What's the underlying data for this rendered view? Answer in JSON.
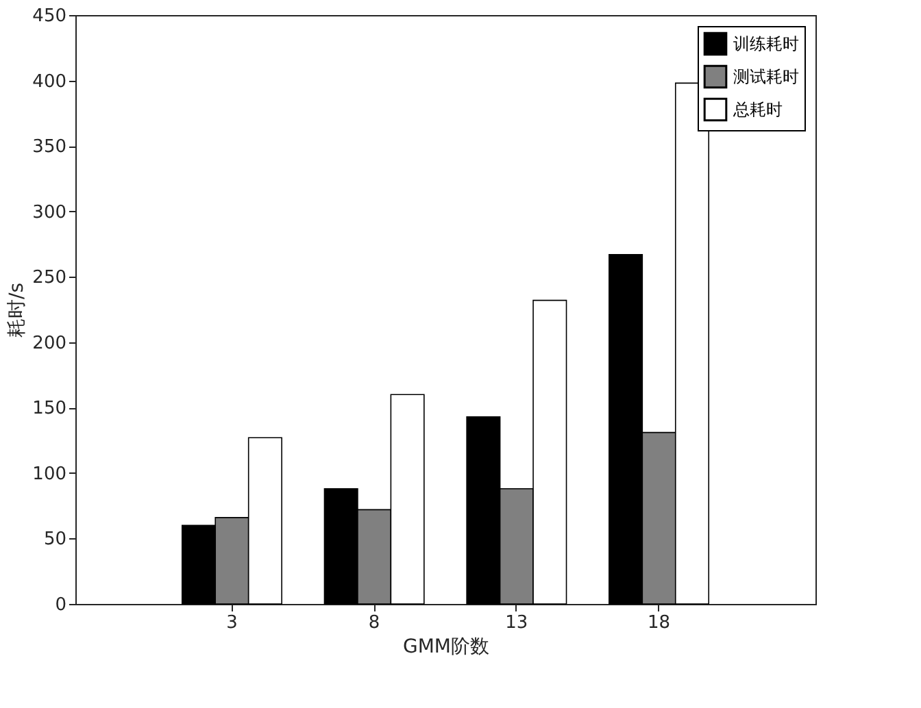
{
  "chart_data": {
    "type": "bar",
    "xlabel": "GMM阶数",
    "ylabel": "耗时/s",
    "categories": [
      "3",
      "8",
      "13",
      "18"
    ],
    "series": [
      {
        "name": "训练耗时",
        "color": "#000000",
        "values": [
          60,
          88,
          143,
          267
        ]
      },
      {
        "name": "测试耗时",
        "color": "#808080",
        "values": [
          66,
          72,
          88,
          131
        ]
      },
      {
        "name": "总耗时",
        "color": "#ffffff",
        "values": [
          127,
          160,
          232,
          398
        ]
      }
    ],
    "ylim": [
      0,
      450
    ],
    "yticks": [
      0,
      50,
      100,
      150,
      200,
      250,
      300,
      350,
      400,
      450
    ],
    "grid": false,
    "legend": "top right"
  }
}
